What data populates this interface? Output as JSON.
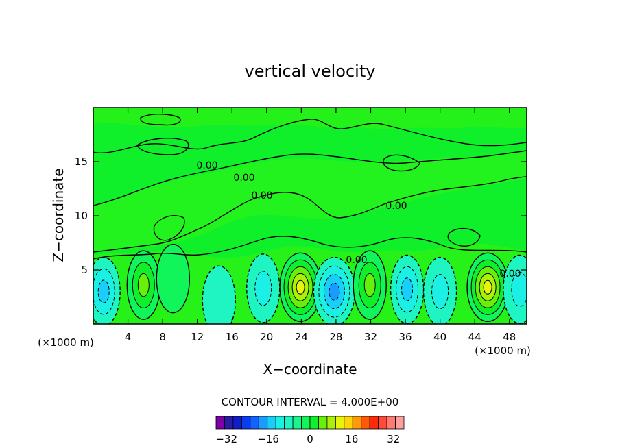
{
  "chart_data": {
    "type": "heatmap",
    "title": "vertical velocity",
    "xlabel": "X−coordinate",
    "ylabel": "Z−coordinate",
    "xlim": [
      0,
      50
    ],
    "ylim": [
      0,
      20
    ],
    "x_ticks": [
      4,
      8,
      12,
      16,
      20,
      24,
      28,
      32,
      36,
      40,
      44,
      48
    ],
    "y_ticks": [
      5,
      10,
      15
    ],
    "x_unit_left": "(×1000 m)",
    "x_unit_right": "(×1000 m)",
    "contour_interval_text": "CONTOUR INTERVAL = 4.000E+00",
    "contour_interval": 4,
    "contour_labels": [
      "0.00",
      "0.00",
      "0.00",
      "0.00",
      "0.00",
      "0.00"
    ],
    "colorbar": {
      "min": -36,
      "max": 36,
      "step": 4,
      "tick_values": [
        -32,
        -16,
        0,
        16,
        32
      ],
      "tick_labels": [
        "−32",
        "−16",
        "0",
        "16",
        "32"
      ],
      "colors": [
        "#7e00a8",
        "#2a1aa8",
        "#0f1ec8",
        "#0a3cf0",
        "#1462ff",
        "#1a9cff",
        "#19cffa",
        "#1cf0e4",
        "#1ef5c2",
        "#19f58c",
        "#12f55a",
        "#10f02a",
        "#66f00a",
        "#aaf00a",
        "#e6f50a",
        "#ffd50a",
        "#ff9a0a",
        "#ff5a0a",
        "#ff2a0a",
        "#ff4a3a",
        "#ff7a70",
        "#ffa0a0"
      ]
    },
    "cells": [
      {
        "x": 1.2,
        "z": 3.0,
        "w": -10
      },
      {
        "x": 5.8,
        "z": 3.6,
        "w": 10
      },
      {
        "x": 9.2,
        "z": 4.2,
        "w": 2
      },
      {
        "x": 14.5,
        "z": 2.2,
        "w": -4
      },
      {
        "x": 19.6,
        "z": 3.3,
        "w": -6
      },
      {
        "x": 23.9,
        "z": 3.4,
        "w": 18
      },
      {
        "x": 27.8,
        "z": 3.0,
        "w": -14
      },
      {
        "x": 31.9,
        "z": 3.6,
        "w": 12
      },
      {
        "x": 36.2,
        "z": 3.2,
        "w": -10
      },
      {
        "x": 40.0,
        "z": 3.0,
        "w": -6
      },
      {
        "x": 45.5,
        "z": 3.4,
        "w": 18
      },
      {
        "x": 49.2,
        "z": 3.2,
        "w": -6
      }
    ]
  }
}
